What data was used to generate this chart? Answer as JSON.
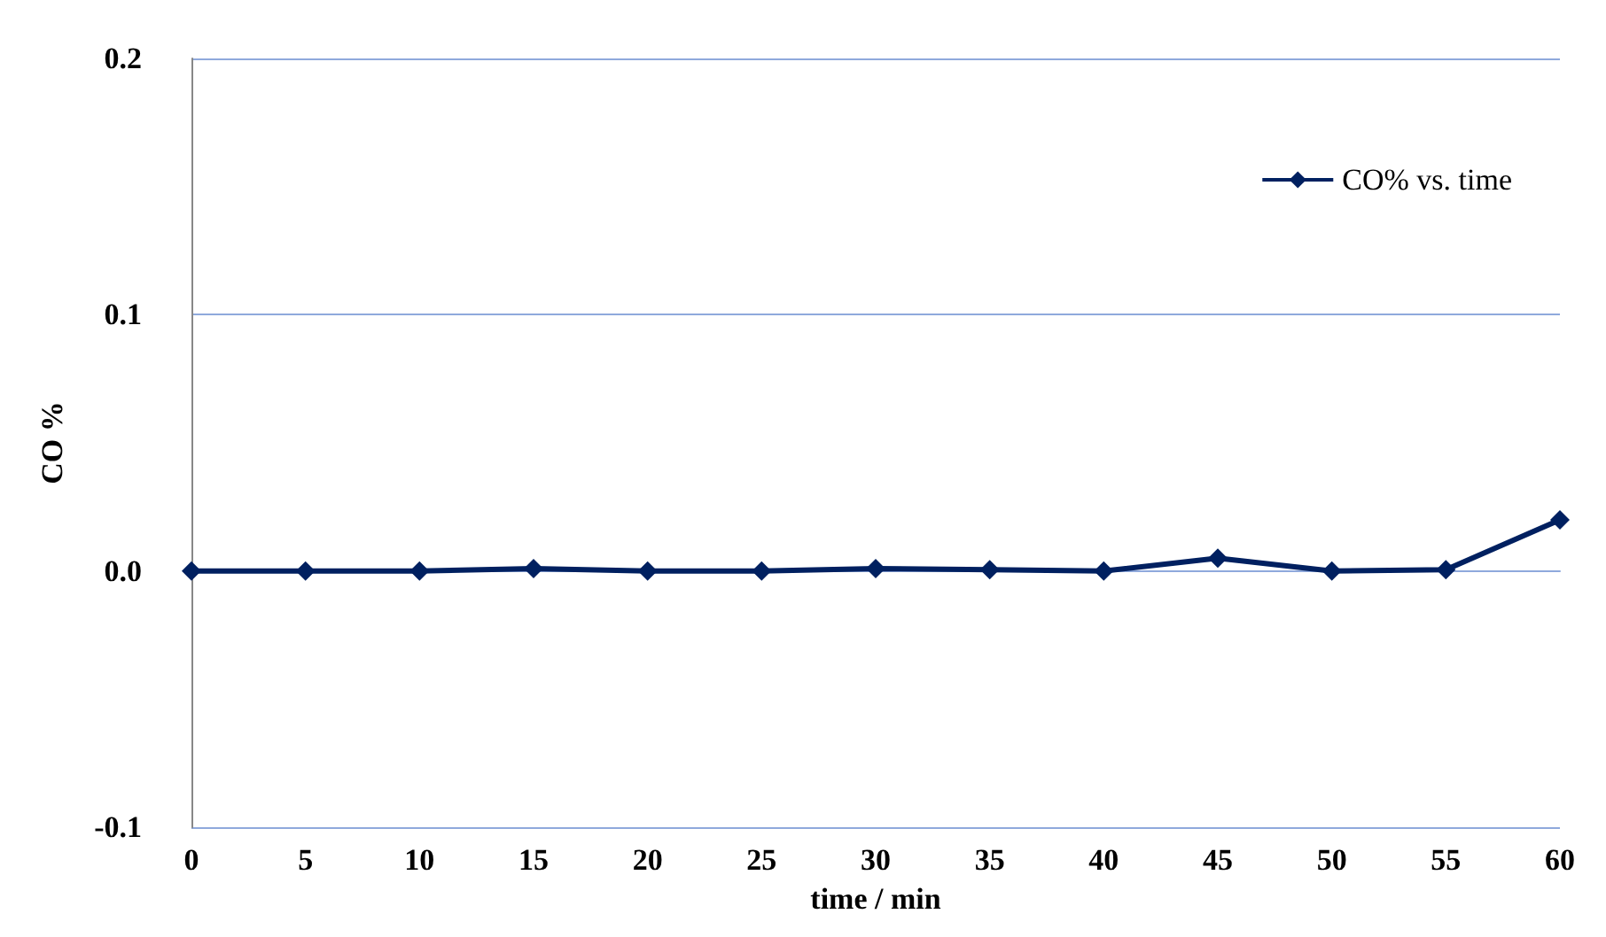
{
  "chart_data": {
    "type": "line",
    "xlabel": "time / min",
    "ylabel": "CO %",
    "x": [
      0,
      5,
      10,
      15,
      20,
      25,
      30,
      35,
      40,
      45,
      50,
      55,
      60
    ],
    "series": [
      {
        "name": "CO% vs. time",
        "color": "#002060",
        "values": [
          0,
          0,
          0,
          0.001,
          0,
          0,
          0.001,
          0.0005,
          0,
          0.005,
          0,
          0.0005,
          0.02
        ]
      }
    ],
    "xlim": [
      0,
      60
    ],
    "xticks": [
      0,
      5,
      10,
      15,
      20,
      25,
      30,
      35,
      40,
      45,
      50,
      55,
      60
    ],
    "ylim": [
      -0.1,
      0.2
    ],
    "yticks": [
      {
        "value": -0.1,
        "label": "-0.1"
      },
      {
        "value": 0,
        "label": "0.0"
      },
      {
        "value": 0.1,
        "label": "0.1"
      },
      {
        "value": 0.2,
        "label": "0.2"
      }
    ],
    "grid": "y",
    "legend": "top right",
    "marker": "diamond",
    "line_style": "solid"
  }
}
